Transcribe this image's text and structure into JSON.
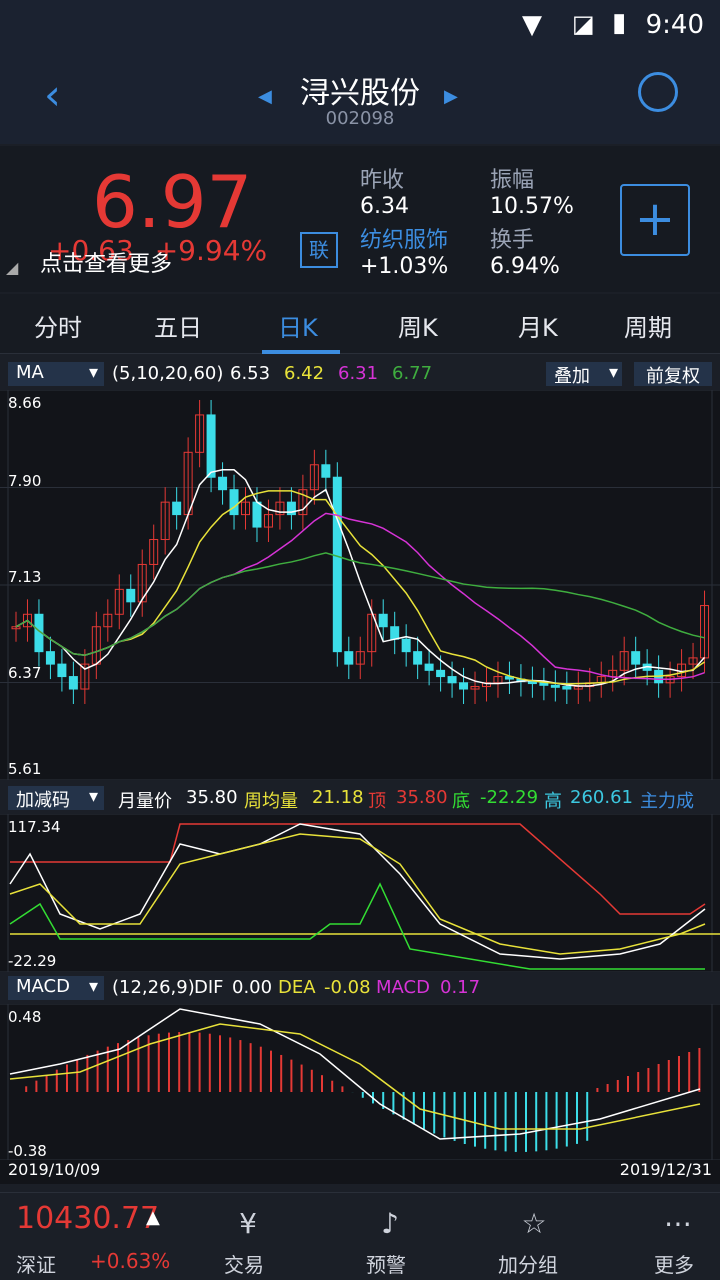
{
  "status_bar": {
    "time": "9:40"
  },
  "header": {
    "title": "浔兴股份",
    "code": "002098"
  },
  "quote": {
    "price": "6.97",
    "change": "+0.63",
    "change_pct": "+9.94%",
    "overlay_hint": "点击查看更多",
    "prev_close_label": "昨收",
    "prev_close": "6.34",
    "amplitude_label": "振幅",
    "amplitude": "10.57%",
    "sector_name": "纺织服饰",
    "sector_change": "+1.03%",
    "turnover_label": "换手",
    "turnover": "6.94%",
    "link_badge": "联",
    "add_button": "+"
  },
  "tabs": [
    "分时",
    "五日",
    "日K",
    "周K",
    "月K",
    "周期"
  ],
  "ma_bar": {
    "indicator": "MA",
    "params": "(5,10,20,60)",
    "v5": "6.53",
    "v10": "6.42",
    "v20": "6.31",
    "v60": "6.77",
    "overlay_btn": "叠加",
    "adjust_btn": "前复权"
  },
  "kline_axis": [
    "8.66",
    "7.90",
    "7.13",
    "6.37",
    "5.61"
  ],
  "second_bar": {
    "indicator": "加减码",
    "label1": "月量价",
    "v1": "35.80",
    "label2": "周均量",
    "v2": "21.18",
    "label3": "顶",
    "v3": "35.80",
    "label4": "底",
    "v4": "-22.29",
    "label5": "高",
    "v5": "260.61",
    "label6": "主力成"
  },
  "second_axis": [
    "117.34",
    "-22.29"
  ],
  "macd_bar": {
    "indicator": "MACD",
    "params": "(12,26,9)",
    "dif_label": "DIF",
    "dif": "0.00",
    "dea_label": "DEA",
    "dea": "-0.08",
    "macd_label": "MACD",
    "macd": "0.17"
  },
  "macd_axis": [
    "0.48",
    "-0.38"
  ],
  "date_start": "2019/10/09",
  "date_end": "2019/12/31",
  "bottom": {
    "index_value": "10430.77",
    "index_name": "深证",
    "index_change": "+0.63%",
    "items": [
      "交易",
      "预警",
      "加分组",
      "更多"
    ]
  }
}
